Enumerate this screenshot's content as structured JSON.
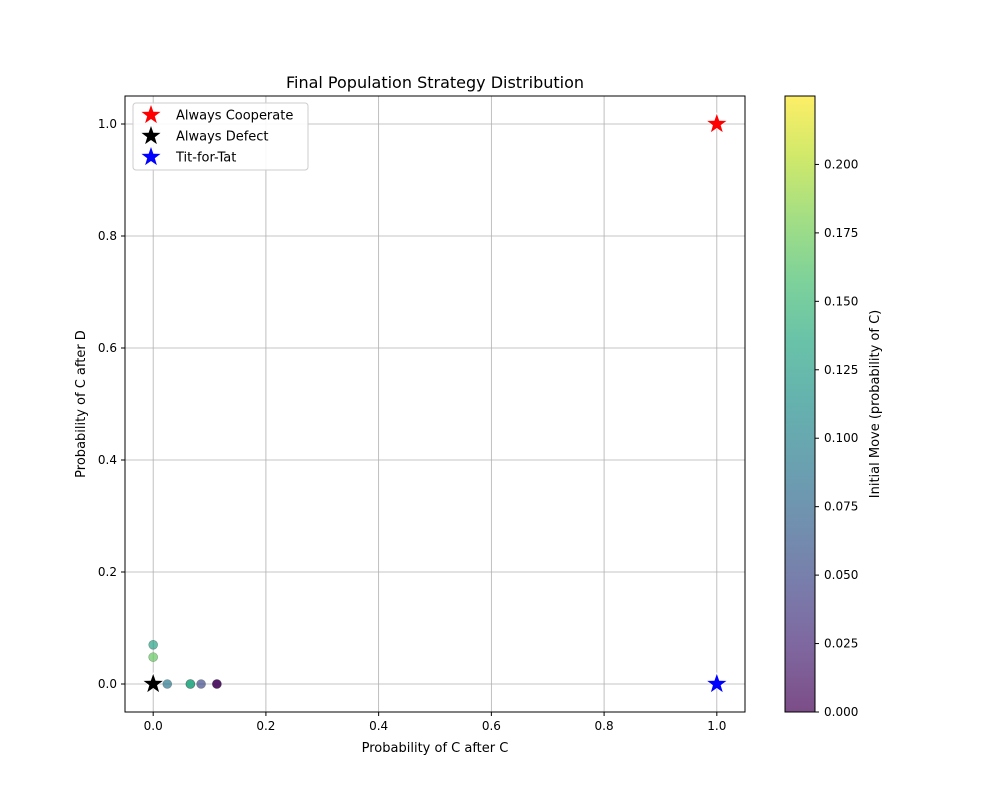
{
  "chart_data": {
    "type": "scatter",
    "title": "Final Population Strategy Distribution",
    "xlabel": "Probability of C after C",
    "ylabel": "Probability of C after D",
    "xlim": [
      -0.05,
      1.05
    ],
    "ylim": [
      -0.05,
      1.05
    ],
    "xticks": [
      0.0,
      0.2,
      0.4,
      0.6,
      0.8,
      1.0
    ],
    "xtick_labels": [
      "0.0",
      "0.2",
      "0.4",
      "0.6",
      "0.8",
      "1.0"
    ],
    "yticks": [
      0.0,
      0.2,
      0.4,
      0.6,
      0.8,
      1.0
    ],
    "ytick_labels": [
      "0.0",
      "0.2",
      "0.4",
      "0.6",
      "0.8",
      "1.0"
    ],
    "grid": true,
    "legend_placement": "upper-left",
    "population": [
      {
        "x": 0.0,
        "y": 0.07,
        "c": 0.13
      },
      {
        "x": 0.0,
        "y": 0.048,
        "c": 0.17
      },
      {
        "x": 0.0,
        "y": 0.0,
        "c": 0.09
      },
      {
        "x": 0.025,
        "y": 0.0,
        "c": 0.09
      },
      {
        "x": 0.066,
        "y": 0.0,
        "c": 0.15
      },
      {
        "x": 0.066,
        "y": 0.0,
        "c": 0.13
      },
      {
        "x": 0.085,
        "y": 0.0,
        "c": 0.05
      },
      {
        "x": 0.113,
        "y": 0.0,
        "c": 0.02
      },
      {
        "x": 0.113,
        "y": 0.0,
        "c": 0.0
      }
    ],
    "reference_strategies": [
      {
        "name": "Always Cooperate",
        "x": 1.0,
        "y": 1.0,
        "color": "#ff0000"
      },
      {
        "name": "Always Defect",
        "x": 0.0,
        "y": 0.0,
        "color": "#000000"
      },
      {
        "name": "Tit-for-Tat",
        "x": 1.0,
        "y": 0.0,
        "color": "#0000ff"
      }
    ],
    "colorbar": {
      "label": "Initial Move (probability of C)",
      "colormap": "viridis",
      "alpha": 0.7,
      "range": [
        0.0,
        0.225
      ],
      "ticks": [
        0.0,
        0.025,
        0.05,
        0.075,
        0.1,
        0.125,
        0.15,
        0.175,
        0.2
      ],
      "tick_labels": [
        "0.000",
        "0.025",
        "0.050",
        "0.075",
        "0.100",
        "0.125",
        "0.150",
        "0.175",
        "0.200"
      ]
    }
  }
}
